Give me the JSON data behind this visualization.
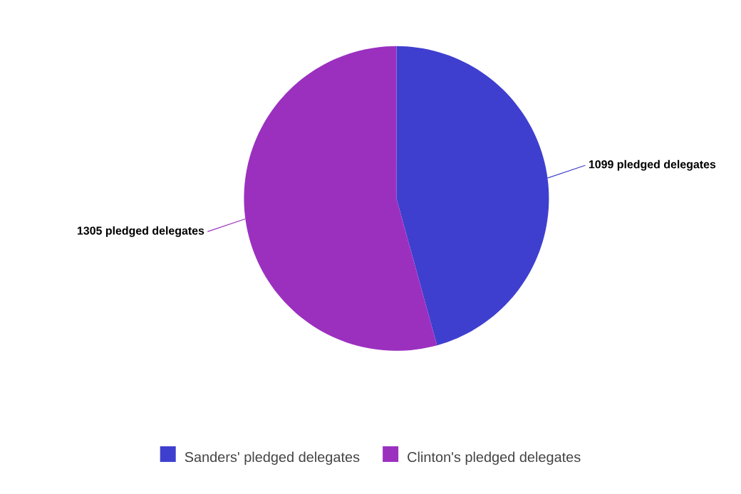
{
  "chart_data": {
    "type": "pie",
    "categories": [
      "Sanders' pledged delegates",
      "Clinton's pledged delegates"
    ],
    "values": [
      1099,
      1305
    ],
    "colors": [
      "#3f3fcf",
      "#9b30bf"
    ],
    "value_labels": [
      "1099 pledged delegates",
      "1305 pledged delegates"
    ],
    "legend": "bottom"
  }
}
